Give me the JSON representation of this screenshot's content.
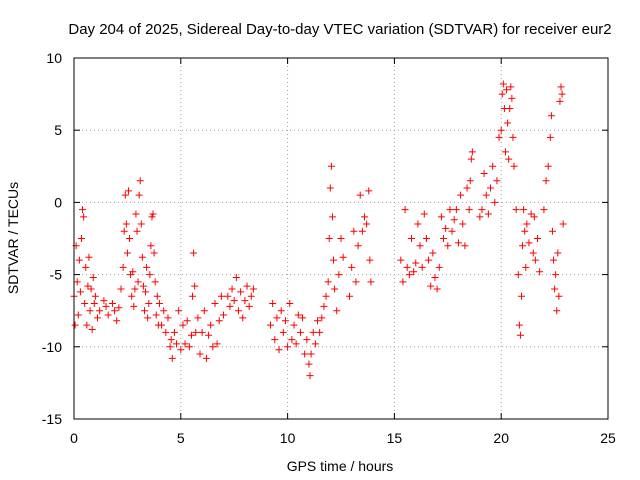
{
  "chart_data": {
    "type": "scatter",
    "title": "Day 204 of 2025, Sidereal Day-to-day VTEC variation (SDTVAR) for receiver eur2",
    "xlabel": "GPS time / hours",
    "ylabel": "SDTVAR / TECUs",
    "xlim": [
      0,
      25
    ],
    "ylim": [
      -15,
      10
    ],
    "xticks": [
      0,
      5,
      10,
      15,
      20,
      25
    ],
    "yticks": [
      -15,
      -10,
      -5,
      0,
      5,
      10
    ],
    "xtick_labels": [
      "0",
      "5",
      "10",
      "15",
      "20",
      "25"
    ],
    "ytick_labels": [
      "-15",
      "-10",
      "-5",
      "0",
      "5",
      "10"
    ],
    "grid": true,
    "marker": "+",
    "series": [
      {
        "name": "SDTVAR",
        "color": "#ff0000",
        "points": [
          [
            0.0,
            -6.5
          ],
          [
            0.05,
            -8.5
          ],
          [
            0.1,
            -3.0
          ],
          [
            0.15,
            -5.5
          ],
          [
            0.2,
            -7.8
          ],
          [
            0.25,
            -4.0
          ],
          [
            0.3,
            -6.2
          ],
          [
            0.35,
            -2.5
          ],
          [
            0.4,
            -0.5
          ],
          [
            0.45,
            -1.0
          ],
          [
            0.5,
            -7.0
          ],
          [
            0.55,
            -4.5
          ],
          [
            0.6,
            -8.5
          ],
          [
            0.65,
            -5.8
          ],
          [
            0.7,
            -3.8
          ],
          [
            0.75,
            -7.5
          ],
          [
            0.8,
            -6.0
          ],
          [
            0.85,
            -8.8
          ],
          [
            0.9,
            -5.2
          ],
          [
            0.95,
            -7.0
          ],
          [
            1.0,
            -6.5
          ],
          [
            1.1,
            -8.0
          ],
          [
            1.2,
            -7.5
          ],
          [
            1.4,
            -6.8
          ],
          [
            1.5,
            -7.2
          ],
          [
            1.6,
            -7.8
          ],
          [
            1.8,
            -7.0
          ],
          [
            1.9,
            -7.5
          ],
          [
            2.0,
            -8.2
          ],
          [
            2.1,
            -7.3
          ],
          [
            2.2,
            -6.0
          ],
          [
            2.3,
            -4.5
          ],
          [
            2.35,
            -2.0
          ],
          [
            2.4,
            0.5
          ],
          [
            2.45,
            -1.5
          ],
          [
            2.5,
            -3.5
          ],
          [
            2.55,
            0.8
          ],
          [
            2.6,
            -2.5
          ],
          [
            2.65,
            -5.0
          ],
          [
            2.7,
            -6.5
          ],
          [
            2.75,
            -4.8
          ],
          [
            2.8,
            -7.2
          ],
          [
            2.85,
            -6.0
          ],
          [
            2.9,
            -0.8
          ],
          [
            2.95,
            -2.0
          ],
          [
            3.0,
            -5.5
          ],
          [
            3.05,
            0.5
          ],
          [
            3.1,
            1.5
          ],
          [
            3.15,
            -1.5
          ],
          [
            3.2,
            -3.8
          ],
          [
            3.25,
            -5.8
          ],
          [
            3.3,
            -7.5
          ],
          [
            3.35,
            -6.2
          ],
          [
            3.4,
            -4.5
          ],
          [
            3.45,
            -8.0
          ],
          [
            3.5,
            -7.0
          ],
          [
            3.55,
            -5.0
          ],
          [
            3.6,
            -3.0
          ],
          [
            3.65,
            -1.0
          ],
          [
            3.7,
            -0.8
          ],
          [
            3.75,
            -3.5
          ],
          [
            3.8,
            -5.5
          ],
          [
            3.85,
            -7.8
          ],
          [
            3.9,
            -6.5
          ],
          [
            3.95,
            -8.5
          ],
          [
            4.0,
            -7.0
          ],
          [
            4.1,
            -8.5
          ],
          [
            4.2,
            -7.5
          ],
          [
            4.3,
            -9.0
          ],
          [
            4.4,
            -8.0
          ],
          [
            4.5,
            -10.0
          ],
          [
            4.55,
            -9.5
          ],
          [
            4.6,
            -10.8
          ],
          [
            4.7,
            -9.0
          ],
          [
            4.8,
            -9.8
          ],
          [
            4.9,
            -7.5
          ],
          [
            5.0,
            -10.2
          ],
          [
            5.1,
            -8.5
          ],
          [
            5.2,
            -9.8
          ],
          [
            5.3,
            -8.2
          ],
          [
            5.4,
            -10.0
          ],
          [
            5.5,
            -9.2
          ],
          [
            5.55,
            -6.5
          ],
          [
            5.6,
            -3.5
          ],
          [
            5.65,
            -5.8
          ],
          [
            5.7,
            -9.0
          ],
          [
            5.8,
            -8.0
          ],
          [
            5.9,
            -10.5
          ],
          [
            6.0,
            -9.0
          ],
          [
            6.1,
            -7.5
          ],
          [
            6.2,
            -10.8
          ],
          [
            6.3,
            -9.2
          ],
          [
            6.4,
            -8.5
          ],
          [
            6.5,
            -10.0
          ],
          [
            6.6,
            -7.0
          ],
          [
            6.7,
            -9.8
          ],
          [
            6.8,
            -8.2
          ],
          [
            6.9,
            -6.5
          ],
          [
            7.0,
            -7.8
          ],
          [
            7.2,
            -6.5
          ],
          [
            7.3,
            -7.2
          ],
          [
            7.4,
            -6.0
          ],
          [
            7.5,
            -6.8
          ],
          [
            7.6,
            -5.2
          ],
          [
            7.7,
            -7.5
          ],
          [
            7.8,
            -6.2
          ],
          [
            7.9,
            -8.0
          ],
          [
            8.0,
            -6.8
          ],
          [
            8.1,
            -5.8
          ],
          [
            8.2,
            -7.2
          ],
          [
            8.3,
            -6.5
          ],
          [
            8.4,
            -6.0
          ],
          [
            9.2,
            -8.5
          ],
          [
            9.3,
            -7.0
          ],
          [
            9.4,
            -9.5
          ],
          [
            9.5,
            -8.0
          ],
          [
            9.6,
            -10.2
          ],
          [
            9.7,
            -7.5
          ],
          [
            9.8,
            -9.0
          ],
          [
            9.9,
            -8.2
          ],
          [
            10.0,
            -10.0
          ],
          [
            10.1,
            -7.0
          ],
          [
            10.2,
            -9.5
          ],
          [
            10.3,
            -8.5
          ],
          [
            10.4,
            -9.8
          ],
          [
            10.5,
            -7.8
          ],
          [
            10.6,
            -9.0
          ],
          [
            10.7,
            -8.0
          ],
          [
            10.8,
            -10.5
          ],
          [
            10.9,
            -9.5
          ],
          [
            11.0,
            -11.2
          ],
          [
            11.05,
            -12.0
          ],
          [
            11.1,
            -10.5
          ],
          [
            11.2,
            -9.0
          ],
          [
            11.3,
            -9.8
          ],
          [
            11.4,
            -8.2
          ],
          [
            11.5,
            -9.0
          ],
          [
            11.6,
            -8.0
          ],
          [
            11.7,
            -7.2
          ],
          [
            11.8,
            -6.5
          ],
          [
            11.9,
            -5.5
          ],
          [
            11.95,
            -2.5
          ],
          [
            12.0,
            1.0
          ],
          [
            12.05,
            2.5
          ],
          [
            12.1,
            -1.0
          ],
          [
            12.15,
            -4.0
          ],
          [
            12.2,
            -6.0
          ],
          [
            12.3,
            -7.5
          ],
          [
            12.4,
            -5.0
          ],
          [
            12.5,
            -2.5
          ],
          [
            12.6,
            -3.8
          ],
          [
            12.9,
            -6.5
          ],
          [
            13.0,
            -4.5
          ],
          [
            13.1,
            -2.0
          ],
          [
            13.2,
            -5.5
          ],
          [
            13.3,
            -3.0
          ],
          [
            13.4,
            0.5
          ],
          [
            13.5,
            -2.0
          ],
          [
            13.6,
            -1.0
          ],
          [
            13.7,
            -1.5
          ],
          [
            13.8,
            0.8
          ],
          [
            13.85,
            -4.0
          ],
          [
            13.9,
            -5.5
          ],
          [
            15.3,
            -4.0
          ],
          [
            15.4,
            -5.5
          ],
          [
            15.5,
            -0.5
          ],
          [
            15.6,
            -4.5
          ],
          [
            15.7,
            -5.0
          ],
          [
            15.8,
            -2.5
          ],
          [
            15.9,
            -4.8
          ],
          [
            16.0,
            -4.2
          ],
          [
            16.1,
            -1.5
          ],
          [
            16.2,
            -3.0
          ],
          [
            16.3,
            -4.5
          ],
          [
            16.4,
            -0.8
          ],
          [
            16.5,
            -2.5
          ],
          [
            16.6,
            -4.0
          ],
          [
            16.7,
            -5.8
          ],
          [
            16.8,
            -3.5
          ],
          [
            16.9,
            -5.2
          ],
          [
            17.0,
            -6.0
          ],
          [
            17.1,
            -4.5
          ],
          [
            17.2,
            -1.0
          ],
          [
            17.3,
            -2.5
          ],
          [
            17.4,
            -1.8
          ],
          [
            17.5,
            -3.0
          ],
          [
            17.6,
            -0.5
          ],
          [
            17.7,
            -2.0
          ],
          [
            17.8,
            -1.2
          ],
          [
            17.9,
            -0.5
          ],
          [
            18.0,
            -2.8
          ],
          [
            18.1,
            0.5
          ],
          [
            18.2,
            -1.5
          ],
          [
            18.3,
            -3.0
          ],
          [
            18.4,
            1.0
          ],
          [
            18.5,
            -0.5
          ],
          [
            18.55,
            1.5
          ],
          [
            18.6,
            3.0
          ],
          [
            18.65,
            3.5
          ],
          [
            19.0,
            -1.0
          ],
          [
            19.1,
            -0.5
          ],
          [
            19.2,
            2.0
          ],
          [
            19.3,
            0.5
          ],
          [
            19.4,
            -0.8
          ],
          [
            19.5,
            1.0
          ],
          [
            19.6,
            2.5
          ],
          [
            19.7,
            0.0
          ],
          [
            19.8,
            1.5
          ],
          [
            19.9,
            4.5
          ],
          [
            20.0,
            5.0
          ],
          [
            20.05,
            7.5
          ],
          [
            20.1,
            8.2
          ],
          [
            20.15,
            6.5
          ],
          [
            20.2,
            3.5
          ],
          [
            20.25,
            7.8
          ],
          [
            20.3,
            5.5
          ],
          [
            20.35,
            3.0
          ],
          [
            20.4,
            6.5
          ],
          [
            20.45,
            8.0
          ],
          [
            20.5,
            7.2
          ],
          [
            20.55,
            4.5
          ],
          [
            20.6,
            2.5
          ],
          [
            20.7,
            -0.5
          ],
          [
            20.8,
            -5.0
          ],
          [
            20.85,
            -8.5
          ],
          [
            20.9,
            -9.2
          ],
          [
            20.95,
            -6.5
          ],
          [
            21.0,
            -3.0
          ],
          [
            21.05,
            -0.5
          ],
          [
            21.1,
            -2.0
          ],
          [
            21.15,
            -4.5
          ],
          [
            21.2,
            -1.5
          ],
          [
            21.3,
            -2.8
          ],
          [
            21.4,
            -0.8
          ],
          [
            21.5,
            -3.5
          ],
          [
            21.55,
            -1.0
          ],
          [
            21.6,
            -4.0
          ],
          [
            21.7,
            -2.5
          ],
          [
            21.8,
            -4.8
          ],
          [
            22.0,
            -0.5
          ],
          [
            22.1,
            1.5
          ],
          [
            22.2,
            2.5
          ],
          [
            22.3,
            4.5
          ],
          [
            22.35,
            6.0
          ],
          [
            22.4,
            -2.0
          ],
          [
            22.45,
            -4.0
          ],
          [
            22.5,
            -6.0
          ],
          [
            22.55,
            -5.0
          ],
          [
            22.6,
            -7.5
          ],
          [
            22.65,
            -3.5
          ],
          [
            22.7,
            -6.5
          ],
          [
            22.75,
            7.0
          ],
          [
            22.8,
            8.0
          ],
          [
            22.85,
            7.5
          ],
          [
            22.9,
            -1.5
          ]
        ]
      }
    ]
  }
}
